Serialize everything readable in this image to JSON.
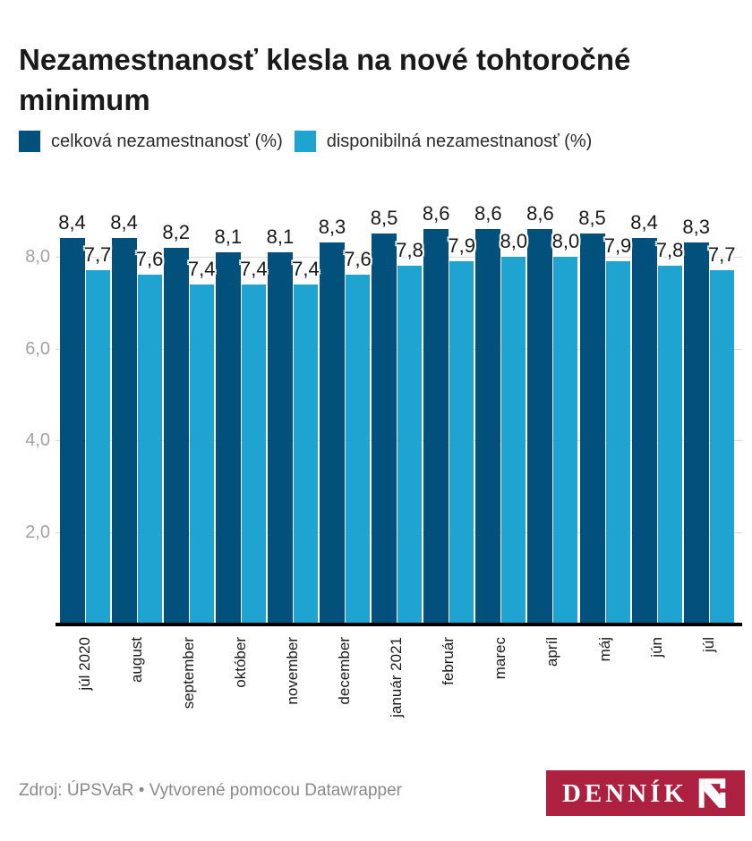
{
  "title": {
    "text": "Nezamestnanosť klesla na nové tohtoročné minimum"
  },
  "legend": {
    "items": [
      {
        "label": "celková nezamestnanosť (%)",
        "color": "#02517c"
      },
      {
        "label": "disponibilná nezamestnanosť (%)",
        "color": "#1fa3d1"
      }
    ]
  },
  "chart_data": {
    "type": "bar",
    "categories": [
      "júl 2020",
      "august",
      "september",
      "október",
      "november",
      "december",
      "január 2021",
      "február",
      "marec",
      "apríl",
      "máj",
      "jún",
      "júl"
    ],
    "series": [
      {
        "name": "celková nezamestnanosť (%)",
        "color": "#02517c",
        "values": [
          8.4,
          8.4,
          8.2,
          8.1,
          8.1,
          8.3,
          8.5,
          8.6,
          8.6,
          8.6,
          8.5,
          8.4,
          8.3
        ]
      },
      {
        "name": "disponibilná nezamestnanosť (%)",
        "color": "#1fa3d1",
        "values": [
          7.7,
          7.6,
          7.4,
          7.4,
          7.4,
          7.6,
          7.8,
          7.9,
          8.0,
          8.0,
          7.9,
          7.8,
          7.7
        ]
      }
    ],
    "value_labels": [
      [
        "8,4",
        "8,4",
        "8,2",
        "8,1",
        "8,1",
        "8,3",
        "8,5",
        "8,6",
        "8,6",
        "8,6",
        "8,5",
        "8,4",
        "8,3"
      ],
      [
        "7,7",
        "7,6",
        "7,4",
        "7,4",
        "7,4",
        "7,6",
        "7,8",
        "7,9",
        "8,0",
        "8,0",
        "7,9",
        "7,8",
        "7,7"
      ]
    ],
    "title": "Nezamestnanosť klesla na nové tohtoročné minimum",
    "xlabel": "",
    "ylabel": "",
    "y_ticks": [
      2,
      4,
      6,
      8
    ],
    "y_tick_labels": [
      "2,0",
      "4,0",
      "6,0",
      "8,0"
    ],
    "ylim": [
      0,
      9.2
    ],
    "grid": "horizontal",
    "legend_position": "top",
    "decimal_separator": ",",
    "gridline_color": "#dadada",
    "axis_line_color": "#000000"
  },
  "footer": {
    "source": "Zdroj: ÚPSVaR • Vytvorené pomocou Datawrapper"
  },
  "logo": {
    "text": "DENNÍK",
    "mark": "dennik-n-mark",
    "background": "#ae203f",
    "foreground": "#ffffff"
  }
}
